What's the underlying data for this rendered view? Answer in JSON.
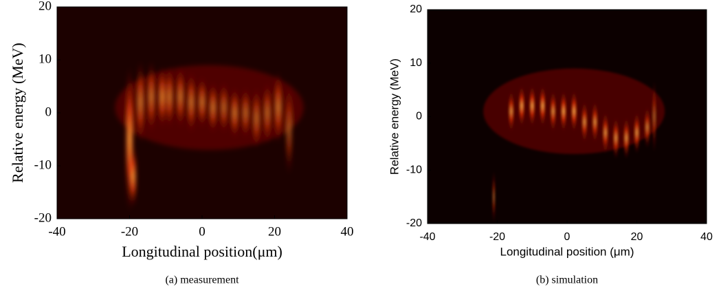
{
  "chart_data": [
    {
      "type": "heatmap",
      "caption": "(a) measurement",
      "xlabel": "Longitudinal position(μm)",
      "ylabel": "Relative energy (MeV)",
      "xlim": [
        -40,
        40
      ],
      "xticks": [
        -40,
        -20,
        0,
        20,
        40
      ],
      "ylim": [
        -20,
        20
      ],
      "yticks": [
        -20,
        -10,
        0,
        10,
        20
      ]
    },
    {
      "type": "heatmap",
      "caption": "(b) simulation",
      "xlabel": "Longitudinal position (μm)",
      "ylabel": "Relative energy (MeV)",
      "xlim": [
        -40,
        40
      ],
      "xticks": [
        -40,
        -20,
        0,
        20,
        40
      ],
      "ylim": [
        -20,
        20
      ],
      "yticks": [
        -20,
        -10,
        0,
        10,
        20
      ]
    }
  ]
}
